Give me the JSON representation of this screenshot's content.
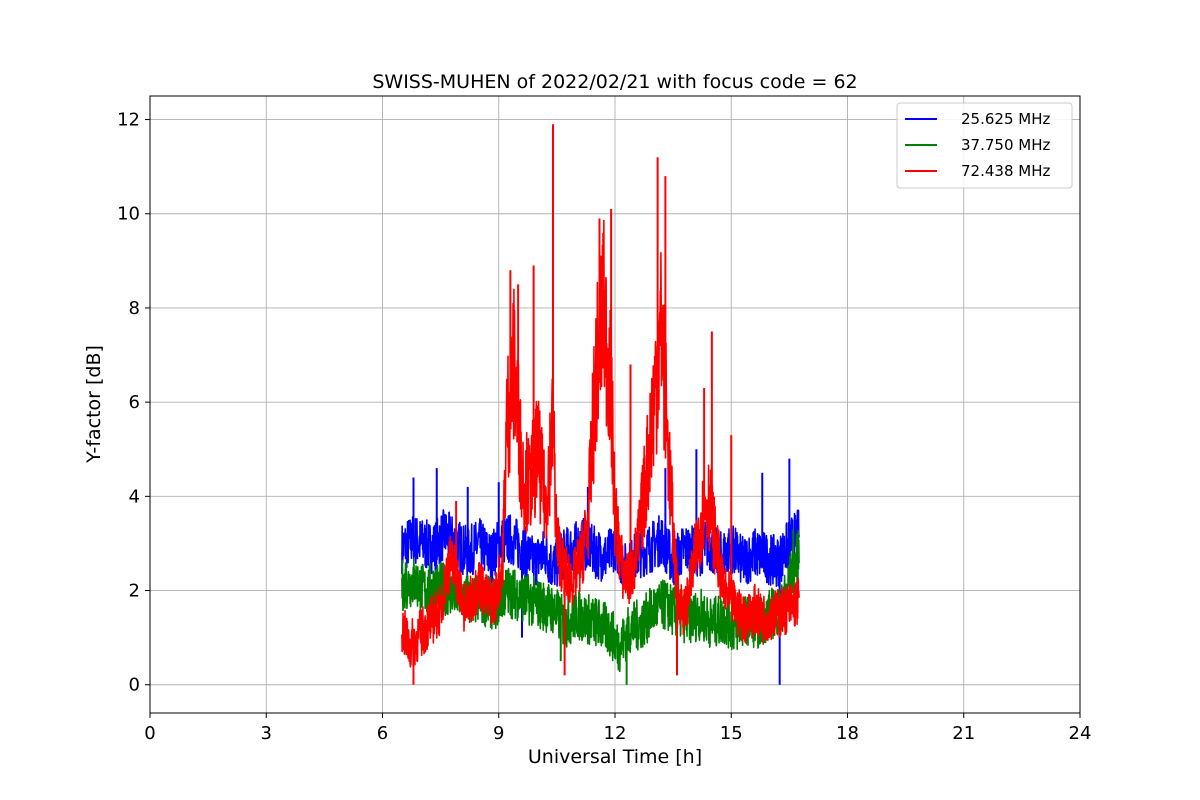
{
  "chart_data": {
    "type": "line",
    "title": "SWISS-MUHEN of 2022/02/21 with focus code = 62",
    "xlabel": "Universal Time [h]",
    "ylabel": "Y-factor [dB]",
    "xlim": [
      0,
      24
    ],
    "ylim": [
      -0.6,
      12.5
    ],
    "xticks": [
      0,
      3,
      6,
      9,
      12,
      15,
      18,
      21,
      24
    ],
    "yticks": [
      0,
      2,
      4,
      6,
      8,
      10,
      12
    ],
    "grid": true,
    "legend_position": "top-right",
    "series": [
      {
        "name": "25.625 MHz",
        "color": "#0000ff",
        "x": [
          6.5,
          6.8,
          7.0,
          7.3,
          7.6,
          7.9,
          8.2,
          8.5,
          8.8,
          9.0,
          9.3,
          9.6,
          9.9,
          10.2,
          10.4,
          10.6,
          10.9,
          11.2,
          11.5,
          11.8,
          12.0,
          12.3,
          12.6,
          12.9,
          13.2,
          13.5,
          13.8,
          14.1,
          14.4,
          14.7,
          15.0,
          15.3,
          15.6,
          15.9,
          16.2,
          16.5,
          16.75
        ],
        "values": [
          2.9,
          3.1,
          3.0,
          2.9,
          3.2,
          3.0,
          2.8,
          3.0,
          2.7,
          3.0,
          3.1,
          2.9,
          2.6,
          2.8,
          2.5,
          2.7,
          2.9,
          3.0,
          2.8,
          2.7,
          3.0,
          2.4,
          2.8,
          2.9,
          3.1,
          2.6,
          2.9,
          2.8,
          3.0,
          2.7,
          2.9,
          2.6,
          2.8,
          2.7,
          2.6,
          3.0,
          3.2
        ],
        "spikes": [
          [
            6.8,
            4.4
          ],
          [
            7.4,
            4.6
          ],
          [
            8.2,
            4.2
          ],
          [
            9.0,
            4.3
          ],
          [
            11.3,
            4.2
          ],
          [
            13.3,
            4.6
          ],
          [
            14.1,
            5.0
          ],
          [
            15.8,
            4.5
          ],
          [
            16.5,
            4.8
          ],
          [
            16.25,
            0.0
          ],
          [
            9.6,
            1.0
          ]
        ]
      },
      {
        "name": "37.750 MHz",
        "color": "#008000",
        "x": [
          6.5,
          6.8,
          7.1,
          7.4,
          7.7,
          8.0,
          8.3,
          8.6,
          8.9,
          9.2,
          9.5,
          9.8,
          10.1,
          10.4,
          10.7,
          11.0,
          11.3,
          11.6,
          11.9,
          12.1,
          12.4,
          12.7,
          13.0,
          13.3,
          13.6,
          13.9,
          14.2,
          14.5,
          14.8,
          15.1,
          15.4,
          15.7,
          16.0,
          16.3,
          16.5,
          16.75
        ],
        "values": [
          2.1,
          2.2,
          2.0,
          2.1,
          2.0,
          1.9,
          1.8,
          1.8,
          1.7,
          2.0,
          1.9,
          1.8,
          1.7,
          1.6,
          1.3,
          1.5,
          1.4,
          1.3,
          1.1,
          0.8,
          1.2,
          1.3,
          1.6,
          1.7,
          1.5,
          1.4,
          1.5,
          1.3,
          1.4,
          1.2,
          1.4,
          1.3,
          1.5,
          1.6,
          2.2,
          2.8
        ],
        "spikes": [
          [
            12.3,
            0.0
          ],
          [
            10.6,
            0.5
          ],
          [
            16.6,
            3.3
          ],
          [
            6.6,
            2.6
          ]
        ]
      },
      {
        "name": "72.438 MHz",
        "color": "#ff0000",
        "x": [
          6.5,
          6.7,
          6.9,
          7.1,
          7.3,
          7.5,
          7.7,
          7.9,
          8.1,
          8.3,
          8.5,
          8.7,
          8.9,
          9.1,
          9.2,
          9.4,
          9.6,
          9.8,
          10.0,
          10.2,
          10.4,
          10.5,
          10.7,
          10.9,
          11.1,
          11.3,
          11.5,
          11.7,
          11.9,
          12.0,
          12.2,
          12.4,
          12.6,
          12.8,
          13.0,
          13.2,
          13.4,
          13.6,
          13.8,
          14.0,
          14.2,
          14.4,
          14.6,
          14.8,
          15.0,
          15.2,
          15.4,
          15.6,
          15.8,
          16.0,
          16.2,
          16.4,
          16.6,
          16.75
        ],
        "values": [
          1.2,
          0.8,
          1.0,
          1.2,
          1.4,
          1.6,
          2.6,
          2.4,
          1.6,
          1.8,
          2.2,
          1.8,
          1.8,
          2.6,
          5.5,
          6.8,
          4.5,
          4.2,
          5.0,
          3.8,
          5.6,
          3.0,
          2.4,
          2.2,
          2.6,
          3.4,
          6.5,
          8.0,
          6.2,
          3.6,
          2.4,
          2.2,
          3.0,
          4.4,
          6.0,
          7.6,
          4.6,
          2.0,
          1.5,
          2.4,
          3.4,
          4.0,
          3.0,
          2.0,
          1.8,
          1.5,
          1.4,
          1.6,
          1.4,
          1.5,
          1.5,
          1.6,
          1.7,
          1.8
        ],
        "spikes": [
          [
            6.8,
            0.0
          ],
          [
            9.3,
            8.8
          ],
          [
            9.5,
            8.5
          ],
          [
            9.9,
            8.9
          ],
          [
            10.4,
            11.9
          ],
          [
            11.6,
            9.9
          ],
          [
            11.9,
            10.1
          ],
          [
            12.4,
            6.8
          ],
          [
            13.1,
            11.2
          ],
          [
            13.3,
            10.8
          ],
          [
            14.3,
            6.3
          ],
          [
            14.5,
            7.5
          ],
          [
            15.0,
            5.3
          ],
          [
            13.6,
            0.2
          ],
          [
            10.7,
            0.2
          ],
          [
            7.9,
            3.9
          ]
        ]
      }
    ]
  }
}
